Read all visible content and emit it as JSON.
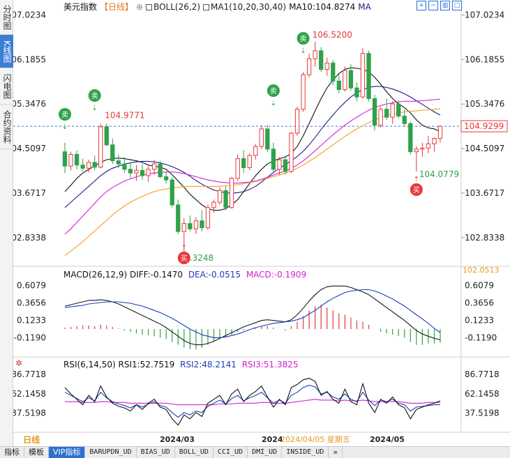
{
  "side_tabs": [
    {
      "label": "分时图",
      "active": false
    },
    {
      "label": "K线图",
      "active": true
    },
    {
      "label": "闪电图",
      "active": false
    },
    {
      "label": "合约资料",
      "active": false
    }
  ],
  "header": {
    "symbol": "美元指数",
    "period": "【日线】",
    "gear_glyph": "⊕",
    "boll_label": "BOLL(26,2)",
    "ma_label": "MA1(10,20,30,40)",
    "ma10_label": "MA10:104.8274",
    "ma_short": "MA"
  },
  "toolbar_icons": [
    "grid-plus-icon",
    "grid-minus-icon",
    "bar-chart-icon",
    "expand-icon"
  ],
  "price_axis": {
    "ticks": [
      "107.0234",
      "106.1855",
      "105.3476",
      "104.5097",
      "103.6717",
      "102.8338"
    ],
    "current_price": "104.9299",
    "current_price_value": 104.9299
  },
  "annotations": {
    "high_label": "106.5200",
    "prev_high_label": "104.9771",
    "low_label": "104.0779",
    "bottom_low_label": ".3248",
    "sell_glyph": "卖",
    "buy_glyph": "买"
  },
  "macd": {
    "title": "MACD(26,12,9)",
    "diff": "DIFF:-0.1470",
    "dea": "DEA:-0.0515",
    "macd": "MACD:-0.1909",
    "side_value": "102.0513",
    "ticks": [
      "0.6079",
      "0.3656",
      "0.1233",
      "-0.1190"
    ]
  },
  "rsi": {
    "title": "RSI(6,14,50)",
    "rsi1": "RSI1:52.7519",
    "rsi2": "RSI2:48.2141",
    "rsi3": "RSI3:51.3825",
    "ticks": [
      "86.7718",
      "62.1458",
      "37.5198"
    ]
  },
  "time_axis": {
    "period_label": "日线",
    "labels": [
      "2024/03",
      "2024",
      "2024/05"
    ],
    "cursor_date": "2024/04/05 星期五"
  },
  "footer_tabs": [
    {
      "label": "指标",
      "active": false
    },
    {
      "label": "模板",
      "active": false
    },
    {
      "label": "VIP指标",
      "active": true
    },
    {
      "label": "BARUPDN_UD",
      "active": false
    },
    {
      "label": "BIAS_UD",
      "active": false
    },
    {
      "label": "BOLL_UD",
      "active": false
    },
    {
      "label": "CCI_UD",
      "active": false
    },
    {
      "label": "DMI_UD",
      "active": false
    },
    {
      "label": "INSIDE_UD",
      "active": false
    },
    {
      "label": "»",
      "active": false
    }
  ],
  "colors": {
    "up": "#e5383b",
    "down": "#2ea24a",
    "ma_black": "#111111",
    "ma_navy": "#1b1b8a",
    "ma_magenta": "#d21fd2",
    "ma_orange": "#f0a020",
    "diff_color": "#1a1a1a",
    "dea_color": "#1a3fb8",
    "macd_label_color": "#d21fd2",
    "rsi2_color": "#1a3fb8",
    "rsi3_color": "#d21fd2",
    "price_tag_border": "#e5383b",
    "time_axis_orange": "#e59a2a",
    "footer_active": "#2f6fd1"
  },
  "chart_data": {
    "type": "candlestick",
    "title": "美元指数 日线",
    "ylim": [
      102.4,
      107.2
    ],
    "candles": [
      [
        104.45,
        104.62,
        104.05,
        104.18
      ],
      [
        104.18,
        104.45,
        104.1,
        104.4
      ],
      [
        104.4,
        104.48,
        104.12,
        104.2
      ],
      [
        104.2,
        104.32,
        104.08,
        104.14
      ],
      [
        104.14,
        104.3,
        104.06,
        104.25
      ],
      [
        104.25,
        104.38,
        104.1,
        104.16
      ],
      [
        104.16,
        104.98,
        104.14,
        104.92
      ],
      [
        104.92,
        104.98,
        104.55,
        104.58
      ],
      [
        104.58,
        104.7,
        104.22,
        104.28
      ],
      [
        104.28,
        104.4,
        104.15,
        104.22
      ],
      [
        104.22,
        104.35,
        104.05,
        104.12
      ],
      [
        104.12,
        104.25,
        103.95,
        104.05
      ],
      [
        104.05,
        104.2,
        103.9,
        104.1
      ],
      [
        104.1,
        104.22,
        103.92,
        104.0
      ],
      [
        104.0,
        104.18,
        103.88,
        104.12
      ],
      [
        104.12,
        104.3,
        104.02,
        104.22
      ],
      [
        104.22,
        104.28,
        103.95,
        103.98
      ],
      [
        103.98,
        104.08,
        103.85,
        103.92
      ],
      [
        103.92,
        103.98,
        103.4,
        103.45
      ],
      [
        103.45,
        103.55,
        102.9,
        102.95
      ],
      [
        102.95,
        103.2,
        102.35,
        103.1
      ],
      [
        103.1,
        103.25,
        102.95,
        103.0
      ],
      [
        103.0,
        103.22,
        102.9,
        103.15
      ],
      [
        103.15,
        103.35,
        102.95,
        103.02
      ],
      [
        103.02,
        103.45,
        102.98,
        103.4
      ],
      [
        103.4,
        103.55,
        103.3,
        103.5
      ],
      [
        103.5,
        103.78,
        103.45,
        103.72
      ],
      [
        103.72,
        103.8,
        103.35,
        103.4
      ],
      [
        103.4,
        103.98,
        103.38,
        103.95
      ],
      [
        103.95,
        104.4,
        103.9,
        104.32
      ],
      [
        104.32,
        104.48,
        104.05,
        104.15
      ],
      [
        104.15,
        104.42,
        104.1,
        104.38
      ],
      [
        104.38,
        104.6,
        104.3,
        104.55
      ],
      [
        104.55,
        104.95,
        104.5,
        104.88
      ],
      [
        104.88,
        104.95,
        104.45,
        104.5
      ],
      [
        104.5,
        104.62,
        104.05,
        104.12
      ],
      [
        104.12,
        104.35,
        104.02,
        104.3
      ],
      [
        104.3,
        104.38,
        104.02,
        104.08
      ],
      [
        104.08,
        104.82,
        104.05,
        104.8
      ],
      [
        104.8,
        105.3,
        104.75,
        105.25
      ],
      [
        105.25,
        105.95,
        105.2,
        105.9
      ],
      [
        105.9,
        106.3,
        105.85,
        106.2
      ],
      [
        106.2,
        106.52,
        106.05,
        106.35
      ],
      [
        106.35,
        106.42,
        105.95,
        106.0
      ],
      [
        106.0,
        106.22,
        105.88,
        106.12
      ],
      [
        106.12,
        106.18,
        105.7,
        105.78
      ],
      [
        105.78,
        105.9,
        105.55,
        105.62
      ],
      [
        105.62,
        106.05,
        105.58,
        105.98
      ],
      [
        105.98,
        106.1,
        105.6,
        105.65
      ],
      [
        105.65,
        105.75,
        105.4,
        105.48
      ],
      [
        105.48,
        106.4,
        105.45,
        106.3
      ],
      [
        106.3,
        106.35,
        105.4,
        105.45
      ],
      [
        105.45,
        105.52,
        104.85,
        104.95
      ],
      [
        104.95,
        105.3,
        104.9,
        105.25
      ],
      [
        105.25,
        105.45,
        105.05,
        105.1
      ],
      [
        105.1,
        105.4,
        104.98,
        105.35
      ],
      [
        105.35,
        105.42,
        105.08,
        105.12
      ],
      [
        105.12,
        105.25,
        104.92,
        104.98
      ],
      [
        104.98,
        105.02,
        104.4,
        104.45
      ],
      [
        104.45,
        104.55,
        104.08,
        104.5
      ],
      [
        104.5,
        104.62,
        104.35,
        104.52
      ],
      [
        104.52,
        104.75,
        104.42,
        104.6
      ],
      [
        104.6,
        104.72,
        104.45,
        104.7
      ],
      [
        104.7,
        104.95,
        104.62,
        104.93
      ]
    ],
    "ma_series": [
      {
        "name": "MA10",
        "color": "#111111",
        "values": [
          103.7,
          103.82,
          103.95,
          104.05,
          104.12,
          104.18,
          104.25,
          104.3,
          104.32,
          104.33,
          104.32,
          104.3,
          104.28,
          104.25,
          104.2,
          104.18,
          104.16,
          104.12,
          104.02,
          103.9,
          103.78,
          103.65,
          103.55,
          103.45,
          103.38,
          103.35,
          103.35,
          103.38,
          103.45,
          103.55,
          103.7,
          103.85,
          104.0,
          104.12,
          104.22,
          104.28,
          104.32,
          104.35,
          104.42,
          104.55,
          104.75,
          104.98,
          105.22,
          105.45,
          105.65,
          105.8,
          105.92,
          106.0,
          106.03,
          106.02,
          106.0,
          105.95,
          105.85,
          105.72,
          105.58,
          105.45,
          105.35,
          105.28,
          105.18,
          105.05,
          104.95,
          104.9,
          104.88,
          104.83
        ]
      },
      {
        "name": "MA20",
        "color": "#1b1b8a",
        "values": [
          103.4,
          103.5,
          103.6,
          103.7,
          103.8,
          103.9,
          104.0,
          104.08,
          104.14,
          104.18,
          104.22,
          104.24,
          104.26,
          104.27,
          104.27,
          104.26,
          104.24,
          104.21,
          104.17,
          104.12,
          104.06,
          103.99,
          103.91,
          103.84,
          103.78,
          103.73,
          103.7,
          103.68,
          103.67,
          103.68,
          103.7,
          103.74,
          103.8,
          103.88,
          103.97,
          104.06,
          104.14,
          104.21,
          104.28,
          104.36,
          104.46,
          104.58,
          104.72,
          104.87,
          105.01,
          105.14,
          105.27,
          105.38,
          105.48,
          105.56,
          105.62,
          105.66,
          105.68,
          105.68,
          105.66,
          105.63,
          105.59,
          105.54,
          105.48,
          105.41,
          105.34,
          105.27,
          105.2,
          105.14
        ]
      },
      {
        "name": "MA30",
        "color": "#d21fd2",
        "values": [
          102.9,
          103.0,
          103.12,
          103.24,
          103.36,
          103.48,
          103.6,
          103.7,
          103.78,
          103.84,
          103.9,
          103.94,
          103.98,
          104.01,
          104.03,
          104.05,
          104.06,
          104.07,
          104.07,
          104.06,
          104.04,
          104.01,
          103.98,
          103.95,
          103.92,
          103.9,
          103.88,
          103.87,
          103.86,
          103.86,
          103.87,
          103.88,
          103.9,
          103.93,
          103.97,
          104.01,
          104.05,
          104.09,
          104.14,
          104.2,
          104.28,
          104.37,
          104.47,
          104.57,
          104.67,
          104.77,
          104.86,
          104.95,
          105.03,
          105.1,
          105.17,
          105.23,
          105.28,
          105.32,
          105.35,
          105.37,
          105.39,
          105.4,
          105.4,
          105.4,
          105.41,
          105.42,
          105.43,
          105.44
        ]
      },
      {
        "name": "MA40",
        "color": "#f0a020",
        "values": [
          102.5,
          102.58,
          102.67,
          102.76,
          102.86,
          102.96,
          103.06,
          103.16,
          103.26,
          103.35,
          103.43,
          103.5,
          103.56,
          103.61,
          103.66,
          103.7,
          103.73,
          103.75,
          103.77,
          103.78,
          103.79,
          103.8,
          103.8,
          103.8,
          103.8,
          103.8,
          103.8,
          103.81,
          103.82,
          103.83,
          103.85,
          103.87,
          103.89,
          103.92,
          103.95,
          103.98,
          104.01,
          104.05,
          104.09,
          104.14,
          104.2,
          104.27,
          104.34,
          104.42,
          104.5,
          104.58,
          104.66,
          104.74,
          104.81,
          104.88,
          104.94,
          105.0,
          105.05,
          105.09,
          105.13,
          105.16,
          105.18,
          105.2,
          105.21,
          105.22,
          105.23,
          105.24,
          105.25,
          105.26
        ]
      }
    ],
    "macd_chart": {
      "ylim": [
        -0.35,
        0.72
      ],
      "hist": [
        0.02,
        0.03,
        0.04,
        0.05,
        0.05,
        0.04,
        0.06,
        0.05,
        0.03,
        0.01,
        -0.02,
        -0.04,
        -0.06,
        -0.08,
        -0.09,
        -0.1,
        -0.12,
        -0.14,
        -0.18,
        -0.22,
        -0.26,
        -0.28,
        -0.28,
        -0.26,
        -0.22,
        -0.18,
        -0.14,
        -0.12,
        -0.08,
        -0.04,
        -0.02,
        0.0,
        0.02,
        0.04,
        0.04,
        0.02,
        0.0,
        -0.02,
        0.04,
        0.1,
        0.18,
        0.26,
        0.32,
        0.34,
        0.3,
        0.26,
        0.22,
        0.2,
        0.16,
        0.12,
        0.1,
        0.06,
        0.0,
        -0.04,
        -0.06,
        -0.08,
        -0.1,
        -0.12,
        -0.18,
        -0.22,
        -0.22,
        -0.2,
        -0.2,
        -0.19
      ],
      "diff": [
        0.32,
        0.34,
        0.36,
        0.38,
        0.4,
        0.4,
        0.41,
        0.4,
        0.38,
        0.35,
        0.31,
        0.27,
        0.23,
        0.19,
        0.15,
        0.11,
        0.07,
        0.02,
        -0.04,
        -0.1,
        -0.16,
        -0.2,
        -0.22,
        -0.22,
        -0.2,
        -0.17,
        -0.13,
        -0.09,
        -0.05,
        -0.01,
        0.03,
        0.06,
        0.09,
        0.12,
        0.13,
        0.12,
        0.11,
        0.1,
        0.13,
        0.2,
        0.29,
        0.39,
        0.48,
        0.55,
        0.59,
        0.6,
        0.6,
        0.6,
        0.58,
        0.55,
        0.52,
        0.48,
        0.42,
        0.36,
        0.3,
        0.24,
        0.18,
        0.12,
        0.05,
        -0.02,
        -0.07,
        -0.1,
        -0.13,
        -0.15
      ],
      "dea": [
        0.3,
        0.31,
        0.32,
        0.33,
        0.35,
        0.36,
        0.37,
        0.38,
        0.38,
        0.38,
        0.37,
        0.36,
        0.34,
        0.32,
        0.29,
        0.26,
        0.23,
        0.19,
        0.15,
        0.1,
        0.05,
        0.0,
        -0.04,
        -0.08,
        -0.1,
        -0.12,
        -0.12,
        -0.11,
        -0.09,
        -0.07,
        -0.04,
        -0.01,
        0.02,
        0.04,
        0.06,
        0.08,
        0.09,
        0.1,
        0.11,
        0.13,
        0.16,
        0.21,
        0.26,
        0.32,
        0.38,
        0.43,
        0.47,
        0.51,
        0.53,
        0.54,
        0.55,
        0.55,
        0.53,
        0.5,
        0.46,
        0.42,
        0.37,
        0.32,
        0.26,
        0.2,
        0.14,
        0.08,
        0.01,
        -0.05
      ]
    },
    "rsi_chart": {
      "ylim": [
        20,
        95
      ],
      "rsi1": [
        70,
        62,
        55,
        48,
        60,
        52,
        72,
        58,
        50,
        46,
        44,
        40,
        48,
        42,
        50,
        55,
        45,
        42,
        30,
        22,
        35,
        30,
        38,
        33,
        50,
        55,
        60,
        48,
        62,
        68,
        52,
        60,
        65,
        72,
        58,
        45,
        55,
        48,
        70,
        74,
        80,
        82,
        78,
        60,
        65,
        55,
        50,
        68,
        52,
        48,
        75,
        50,
        38,
        55,
        50,
        58,
        48,
        44,
        30,
        42,
        45,
        48,
        50,
        53
      ],
      "rsi2": [
        64,
        60,
        56,
        52,
        57,
        53,
        64,
        57,
        52,
        49,
        47,
        44,
        48,
        45,
        49,
        52,
        47,
        45,
        38,
        32,
        38,
        35,
        40,
        38,
        46,
        50,
        54,
        49,
        56,
        60,
        53,
        57,
        60,
        64,
        57,
        50,
        54,
        50,
        60,
        64,
        70,
        73,
        71,
        62,
        64,
        58,
        55,
        62,
        55,
        52,
        64,
        54,
        47,
        54,
        52,
        55,
        50,
        48,
        40,
        45,
        46,
        47,
        48,
        48
      ],
      "rsi3": [
        52,
        52,
        52,
        51,
        51,
        51,
        52,
        52,
        51,
        51,
        51,
        50,
        50,
        50,
        50,
        50,
        50,
        50,
        49,
        48,
        48,
        48,
        48,
        48,
        48,
        48,
        49,
        49,
        49,
        50,
        50,
        50,
        50,
        51,
        51,
        50,
        50,
        50,
        51,
        52,
        53,
        54,
        55,
        54,
        54,
        54,
        53,
        54,
        53,
        53,
        54,
        53,
        52,
        52,
        52,
        52,
        52,
        51,
        50,
        50,
        50,
        51,
        51,
        51
      ]
    }
  }
}
